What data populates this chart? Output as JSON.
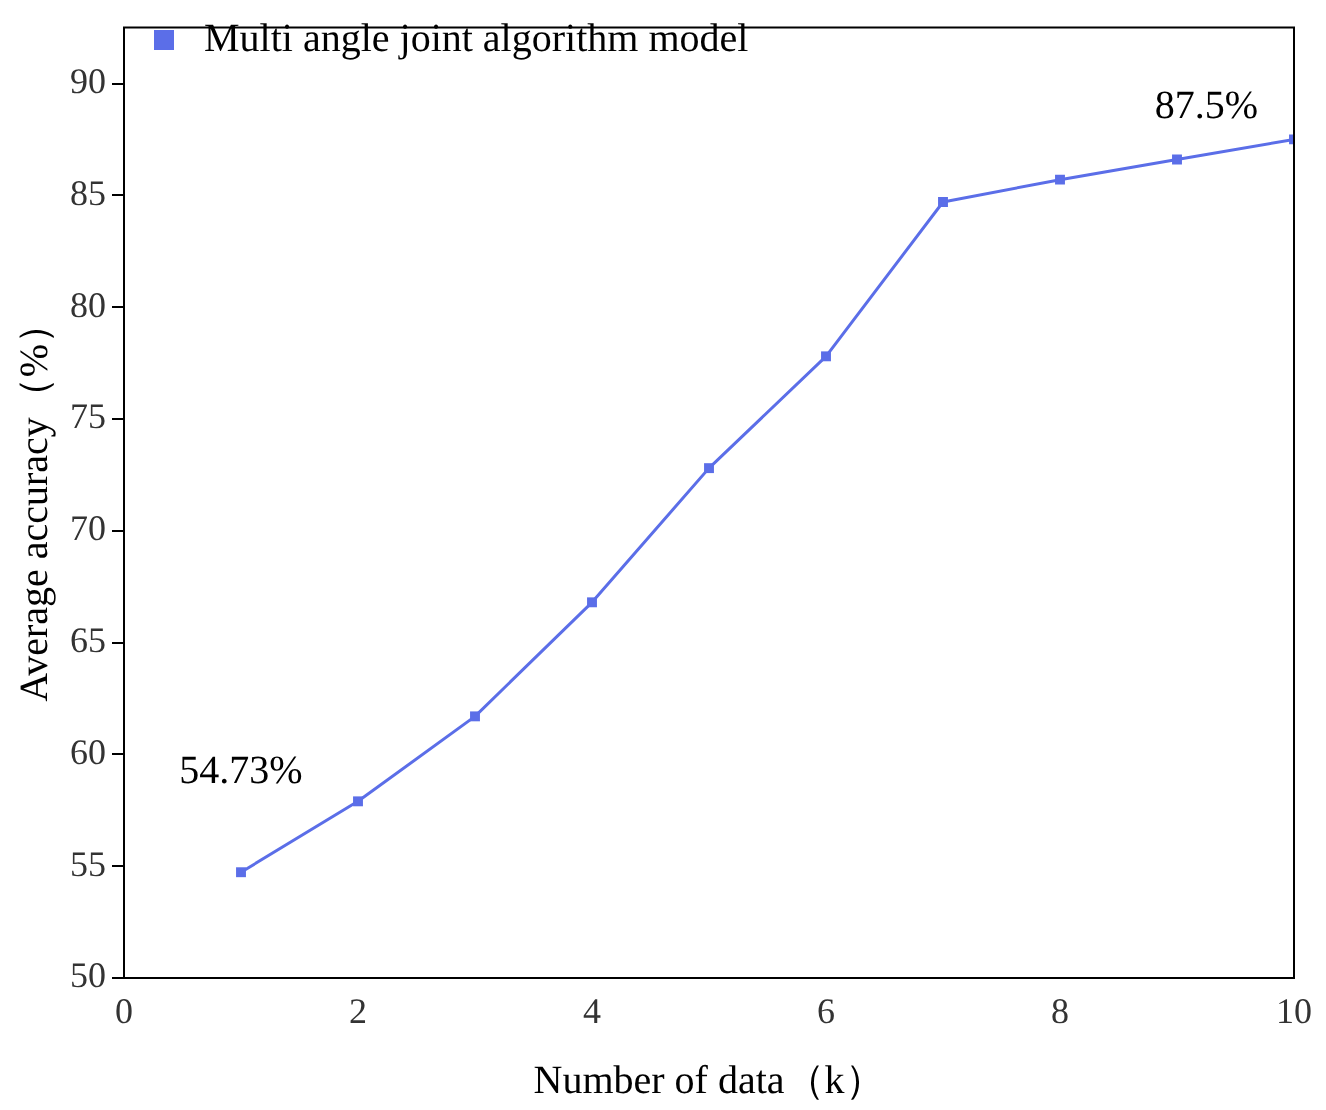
{
  "chart_data": {
    "type": "line",
    "xlabel": "Number of data（k）",
    "ylabel": "Average accuracy（%）",
    "x": [
      1,
      2,
      3,
      4,
      5,
      6,
      7,
      8,
      9,
      10
    ],
    "series": [
      {
        "name": "Multi angle joint algorithm model",
        "color": "#5b6ee8",
        "values": [
          54.73,
          57.9,
          61.7,
          66.8,
          72.8,
          77.8,
          84.7,
          85.7,
          86.6,
          87.5
        ]
      }
    ],
    "xlim": [
      0,
      10
    ],
    "xticks": [
      0,
      2,
      4,
      6,
      8,
      10
    ],
    "ylim": [
      50,
      92.5
    ],
    "yticks": [
      50,
      55,
      60,
      65,
      70,
      75,
      80,
      85,
      90
    ],
    "grid": false,
    "legend": "top left",
    "marker": "square",
    "line_style": "solid",
    "annotations": [
      {
        "text": "54.73%",
        "x": 1,
        "y": 54.73
      },
      {
        "text": "87.5%",
        "x": 10,
        "y": 87.5
      }
    ]
  }
}
